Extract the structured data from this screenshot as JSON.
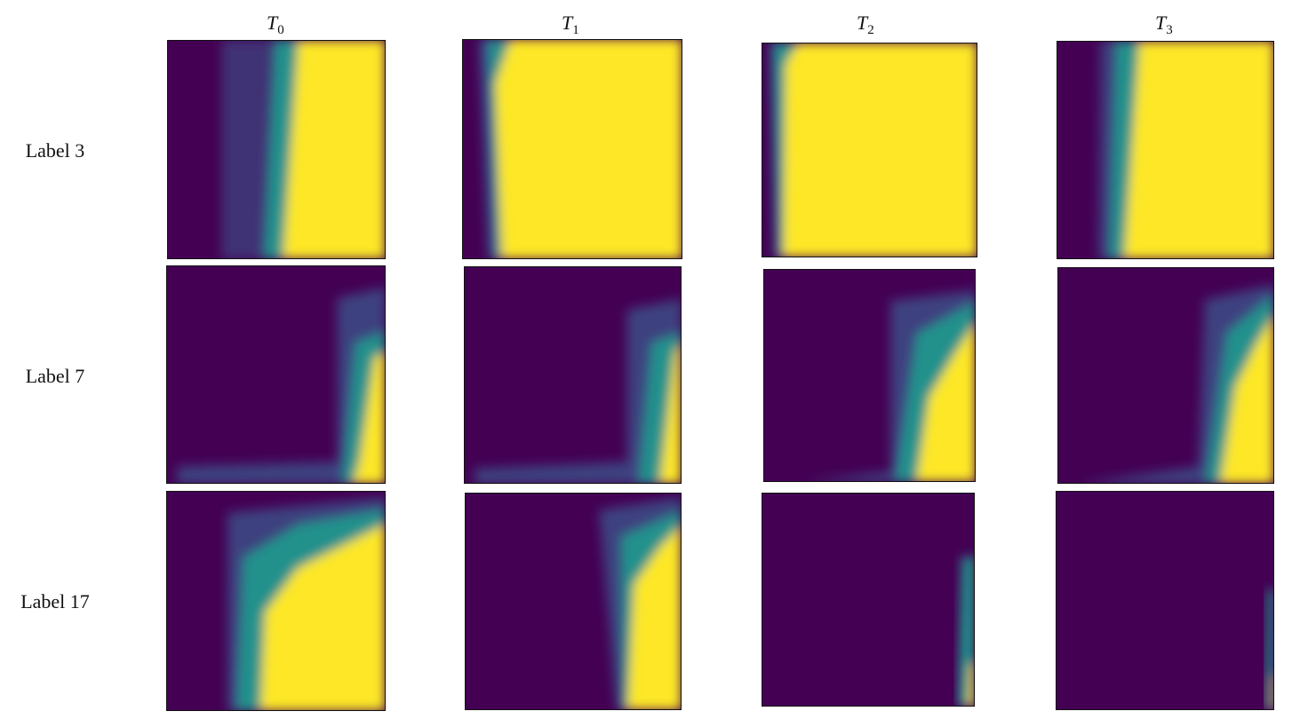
{
  "columns": [
    {
      "symbol": "T",
      "subscript": "0"
    },
    {
      "symbol": "T",
      "subscript": "1"
    },
    {
      "symbol": "T",
      "subscript": "2"
    },
    {
      "symbol": "T",
      "subscript": "3"
    }
  ],
  "rows": [
    "Label 3",
    "Label 7",
    "Label 17"
  ]
}
